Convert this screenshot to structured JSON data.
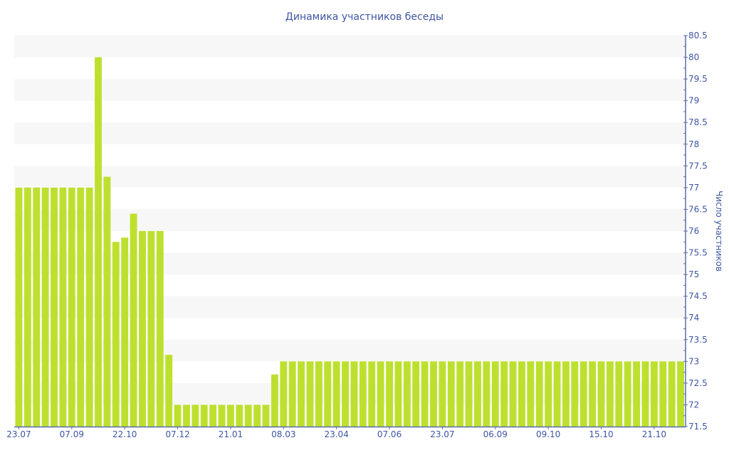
{
  "chart_data": {
    "type": "bar",
    "title": "Динамика участников беседы",
    "ylabel": "Число участников",
    "xlabel": "",
    "ylim": [
      71.5,
      80.5
    ],
    "y_axis_side": "right",
    "y_ticks": [
      71.5,
      72,
      72.5,
      73,
      73.5,
      74,
      74.5,
      75,
      75.5,
      76,
      76.5,
      77,
      77.5,
      78,
      78.5,
      79,
      79.5,
      80,
      80.5
    ],
    "x_tick_labels": [
      {
        "bar": 1,
        "label": "23.07"
      },
      {
        "bar": 7,
        "label": "07.09"
      },
      {
        "bar": 13,
        "label": "22.10"
      },
      {
        "bar": 19,
        "label": "07.12"
      },
      {
        "bar": 25,
        "label": "21.01"
      },
      {
        "bar": 31,
        "label": "08.03"
      },
      {
        "bar": 37,
        "label": "23.04"
      },
      {
        "bar": 43,
        "label": "07.06"
      },
      {
        "bar": 49,
        "label": "23.07"
      },
      {
        "bar": 55,
        "label": "06.09"
      },
      {
        "bar": 61,
        "label": "09.10"
      },
      {
        "bar": 67,
        "label": "15.10"
      },
      {
        "bar": 73,
        "label": "21.10"
      }
    ],
    "values": [
      77,
      77,
      77,
      77,
      77,
      77,
      77,
      77,
      77,
      80,
      77.25,
      75.75,
      75.85,
      76.4,
      76,
      76,
      76,
      73.15,
      72,
      72,
      72,
      72,
      72,
      72,
      72,
      72,
      72,
      72,
      72,
      72.7,
      73,
      73,
      73,
      73,
      73,
      73,
      73,
      73,
      73,
      73,
      73,
      73,
      73,
      73,
      73,
      73,
      73,
      73,
      73,
      73,
      73,
      73,
      73,
      73,
      73,
      73,
      73,
      73,
      73,
      73,
      73,
      73,
      73,
      73,
      73,
      73,
      73,
      73,
      73,
      73,
      73,
      73,
      73,
      73,
      73,
      73
    ],
    "grid": "alternating horizontal bands",
    "legend": "none",
    "colors": {
      "bar": "#bde02f",
      "text": "#3e55a3",
      "axis": "#5a6fa8",
      "band": "#f7f7f7"
    }
  }
}
